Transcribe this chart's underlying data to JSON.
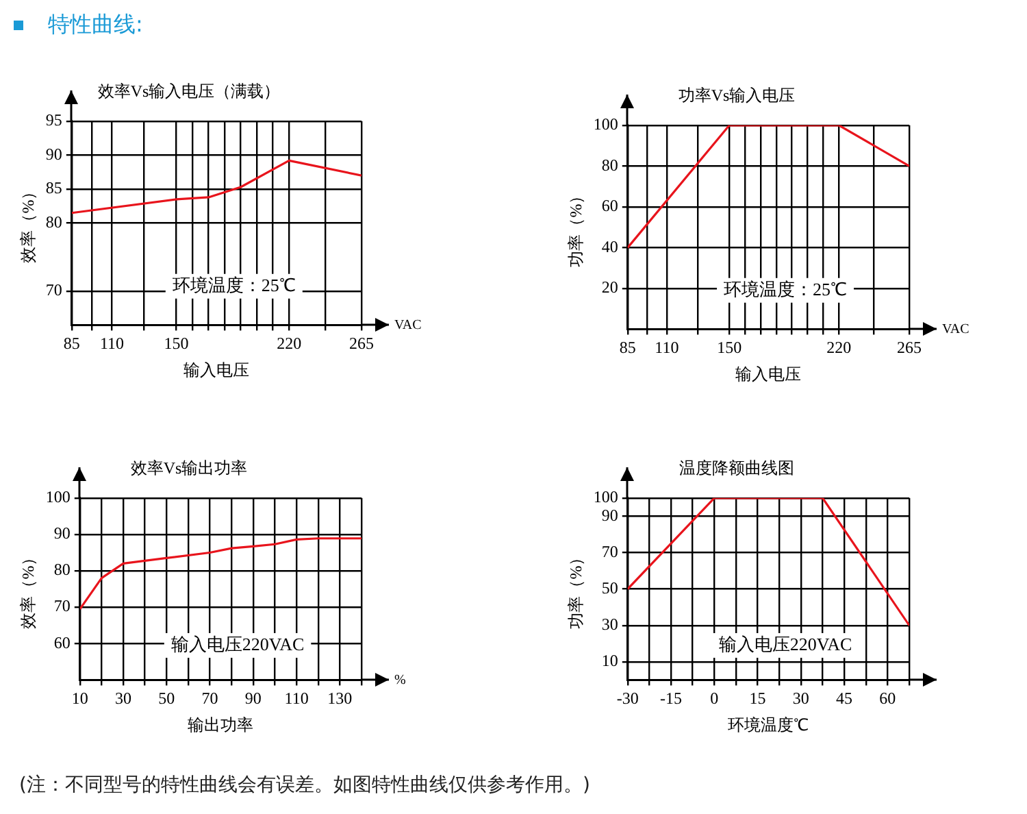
{
  "chart_data": [
    {
      "type": "other",
      "title": "特性曲线:"
    },
    {
      "type": "line",
      "title": "效率Vs输入电压（满载）",
      "xlabel": "输入电压",
      "ylabel": "效率（%）",
      "annotations": [
        "环境温度：25℃",
        "VAC"
      ],
      "x": [
        85,
        150,
        170,
        190,
        220,
        265
      ],
      "series": [
        {
          "color": "#e8141c",
          "values": [
            81.5,
            83.5,
            83.8,
            85.3,
            89.2,
            87
          ]
        }
      ],
      "xlim": [
        85,
        265
      ],
      "xticks": [
        85,
        {
          "value": 97.5,
          "label": null
        },
        110,
        {
          "value": 130,
          "label": null
        },
        150,
        {
          "value": 160,
          "label": null
        },
        {
          "value": 170,
          "label": null
        },
        {
          "value": 180,
          "label": null
        },
        {
          "value": 190,
          "label": null
        },
        {
          "value": 200,
          "label": null
        },
        {
          "value": 210,
          "label": null
        },
        220,
        {
          "value": 242.5,
          "label": null
        },
        265
      ],
      "ylim": [
        65,
        95
      ],
      "yticks": [
        70,
        80,
        85,
        90,
        95
      ],
      "grid": true,
      "marker": "none"
    },
    {
      "type": "line",
      "title": "功率Vs输入电压",
      "xlabel": "输入电压",
      "ylabel": "功率（%）",
      "annotations": [
        "环境温度：25℃",
        "VAC"
      ],
      "x": [
        85,
        150,
        220,
        265
      ],
      "series": [
        {
          "color": "#e8141c",
          "values": [
            40,
            100,
            100,
            80
          ]
        }
      ],
      "xlim": [
        85,
        265
      ],
      "xticks": [
        85,
        {
          "value": 97.5,
          "label": null
        },
        110,
        {
          "value": 130,
          "label": null
        },
        150,
        {
          "value": 160,
          "label": null
        },
        {
          "value": 170,
          "label": null
        },
        {
          "value": 180,
          "label": null
        },
        {
          "value": 190,
          "label": null
        },
        {
          "value": 200,
          "label": null
        },
        {
          "value": 210,
          "label": null
        },
        220,
        {
          "value": 242.5,
          "label": null
        },
        265
      ],
      "ylim": [
        0,
        100
      ],
      "yticks": [
        20,
        40,
        60,
        80,
        100
      ],
      "grid": true,
      "marker": "none"
    },
    {
      "type": "line",
      "title": "效率Vs输出功率",
      "xlabel": "输出功率",
      "ylabel": "效率（%）",
      "annotations": [
        "输入电压220VAC",
        "%"
      ],
      "x": [
        10,
        20,
        30,
        50,
        70,
        80,
        90,
        100,
        110,
        120,
        140
      ],
      "series": [
        {
          "color": "#e8141c",
          "values": [
            69.5,
            78,
            82,
            83.5,
            85,
            86.2,
            86.7,
            87.3,
            88.6,
            88.9,
            88.9
          ]
        }
      ],
      "xlim": [
        10,
        140
      ],
      "xticks": [
        10,
        {
          "value": 20,
          "label": null
        },
        30,
        {
          "value": 40,
          "label": null
        },
        50,
        {
          "value": 60,
          "label": null
        },
        70,
        {
          "value": 80,
          "label": null
        },
        90,
        {
          "value": 100,
          "label": null
        },
        110,
        {
          "value": 120,
          "label": null
        },
        130,
        {
          "value": 140,
          "label": null
        }
      ],
      "ylim": [
        50,
        100
      ],
      "yticks": [
        60,
        70,
        80,
        90,
        100
      ],
      "grid": true,
      "marker": "none"
    },
    {
      "type": "line",
      "title": "温度降额曲线图",
      "xlabel": "环境温度℃",
      "ylabel": "功率（%）",
      "annotations": [
        "输入电压220VAC"
      ],
      "x": [
        -30,
        0,
        37.5,
        67.5
      ],
      "series": [
        {
          "color": "#e8141c",
          "values": [
            50,
            100,
            100,
            30
          ]
        }
      ],
      "xlim": [
        -30,
        67.5
      ],
      "xticks": [
        -30,
        {
          "value": -22.5,
          "label": null
        },
        -15,
        {
          "value": -7.5,
          "label": null
        },
        0,
        {
          "value": 7.5,
          "label": null
        },
        15,
        {
          "value": 22.5,
          "label": null
        },
        30,
        {
          "value": 37.5,
          "label": null
        },
        45,
        {
          "value": 52.5,
          "label": null
        },
        60,
        {
          "value": 67.5,
          "label": null
        }
      ],
      "ylim": [
        0,
        100
      ],
      "yticks": [
        10,
        30,
        50,
        70,
        90,
        100
      ],
      "grid": true,
      "marker": "none"
    },
    {
      "type": "other",
      "annotations": [
        "(注：不同型号的特性曲线会有误差。如图特性曲线仅供参考作用。)"
      ]
    }
  ]
}
